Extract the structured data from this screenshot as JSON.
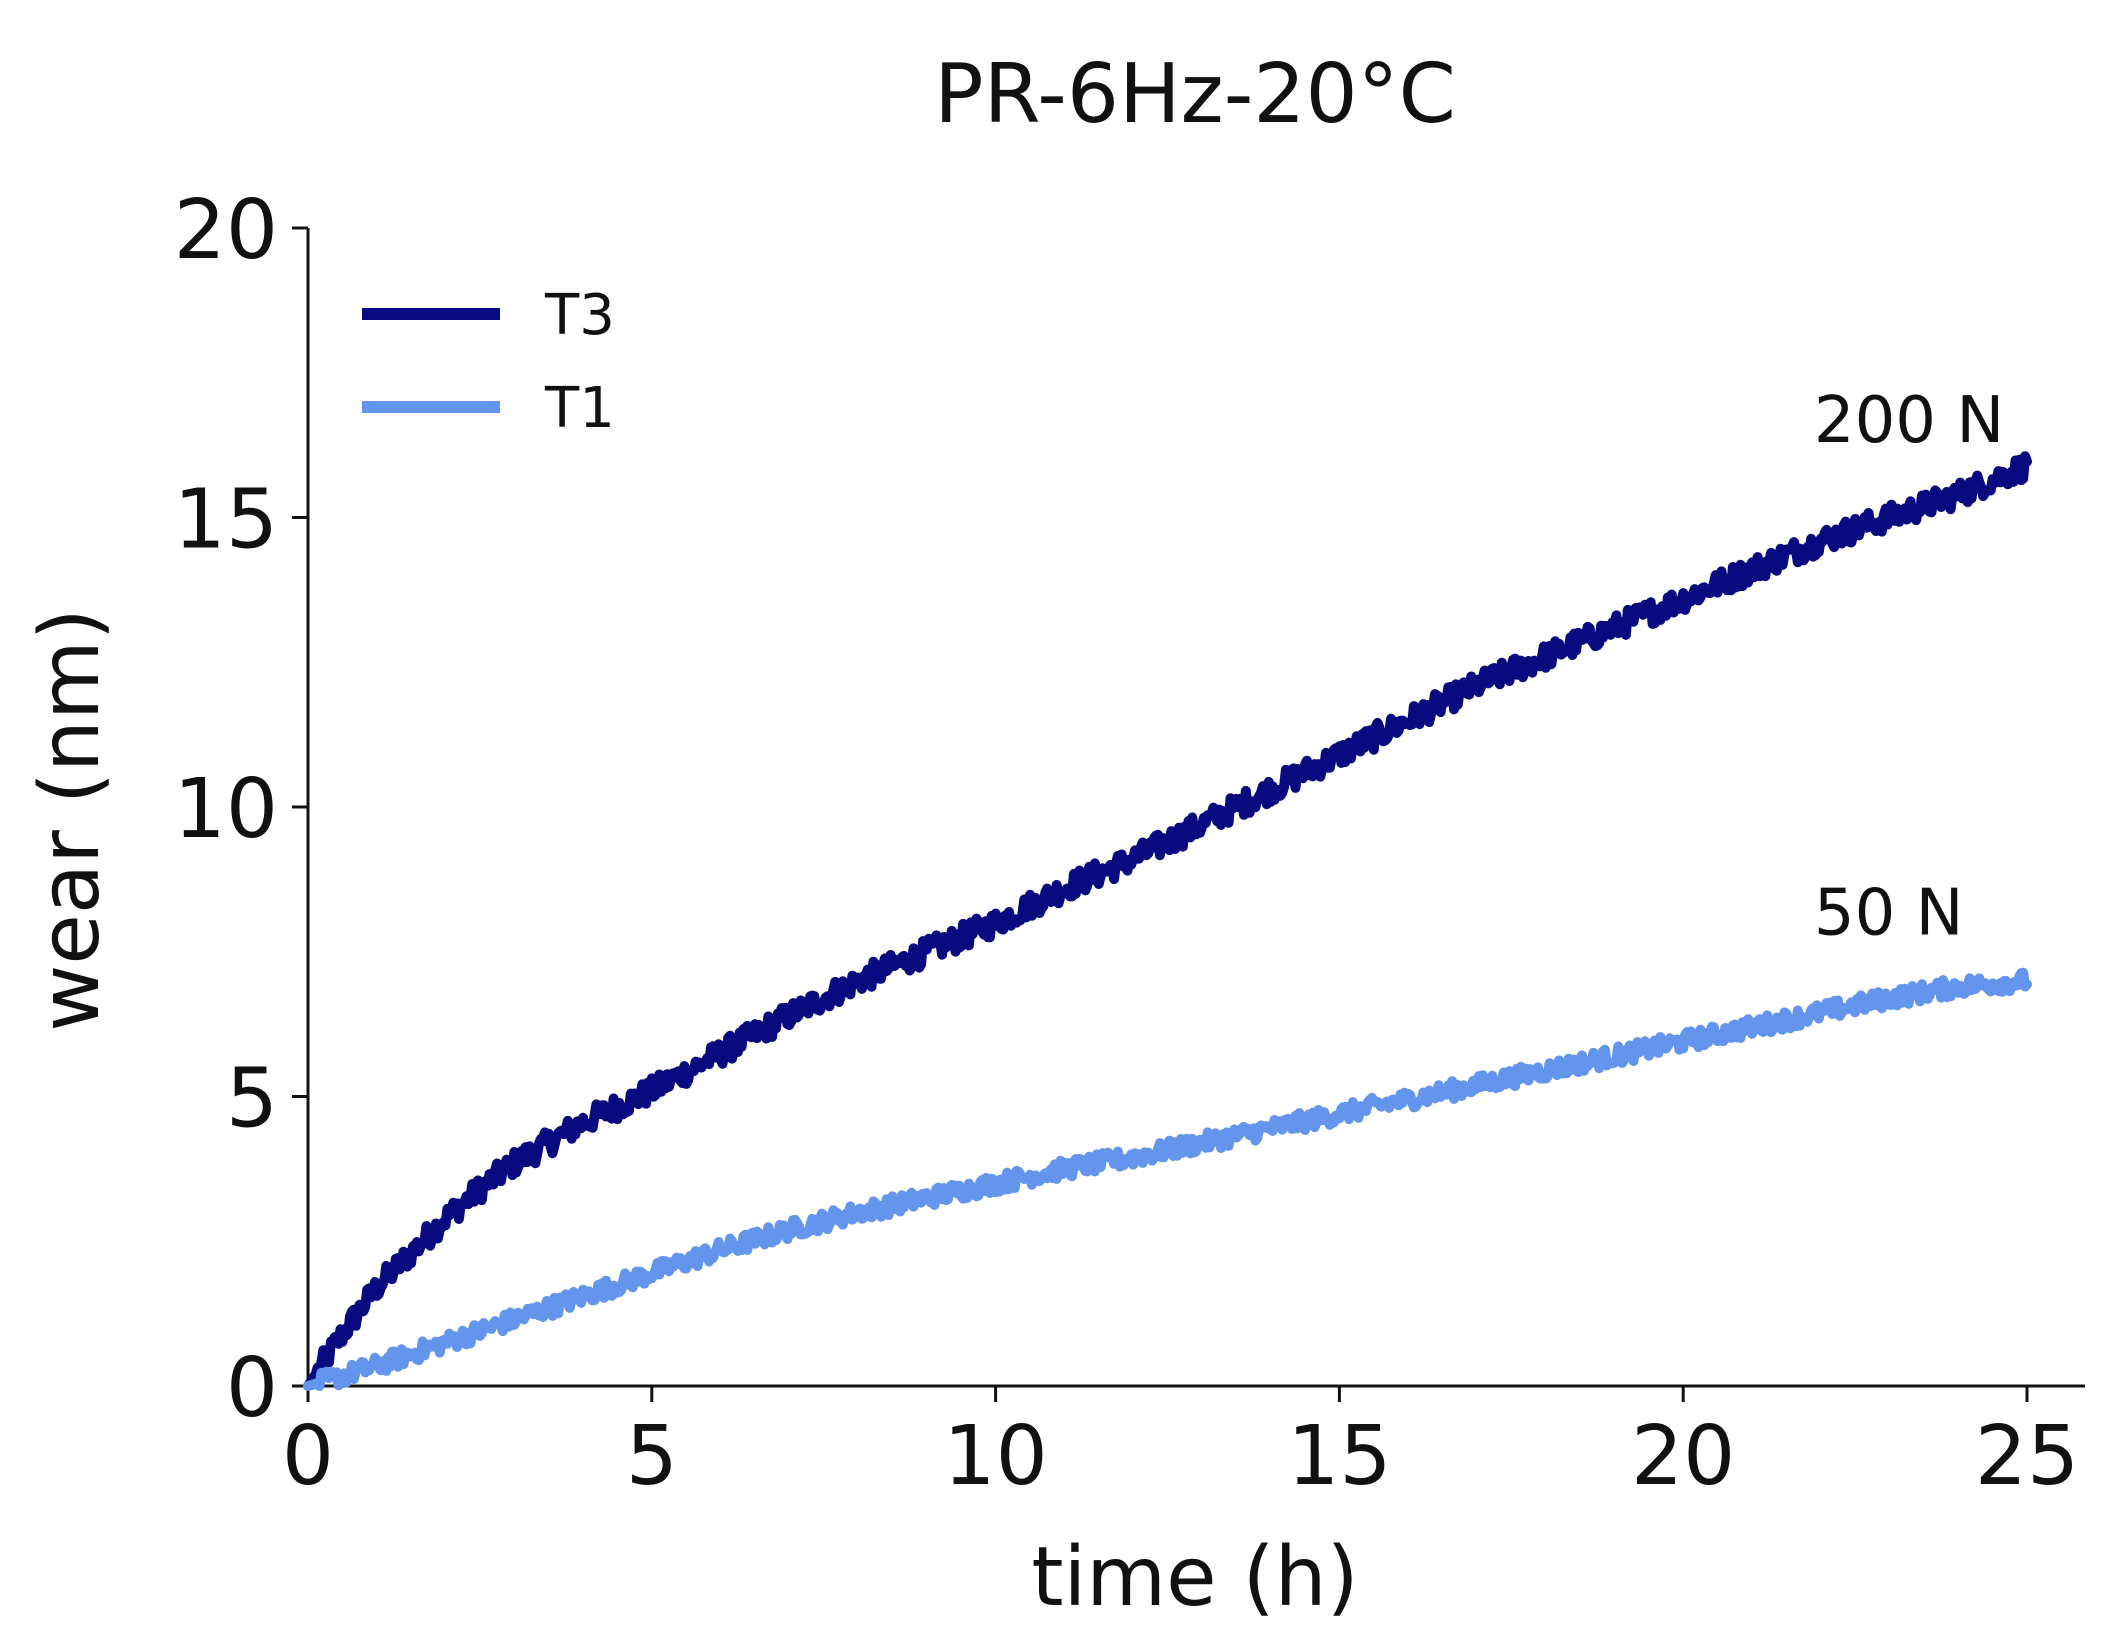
{
  "chart_data": {
    "type": "line",
    "title": "PR-6Hz-20°C",
    "xlabel": "time (h)",
    "ylabel": "wear (nm)",
    "xlim": [
      0,
      26
    ],
    "ylim": [
      0,
      20
    ],
    "xticks": [
      0,
      5,
      10,
      15,
      20,
      25
    ],
    "yticks": [
      0,
      5,
      10,
      15,
      20
    ],
    "xtick_labels": [
      "0",
      "5",
      "10",
      "15",
      "20",
      "25"
    ],
    "ytick_labels": [
      "0",
      "5",
      "10",
      "15",
      "20"
    ],
    "grid": false,
    "legend_position": "top-left",
    "series": [
      {
        "name": "T3",
        "color": "#0a0a80",
        "x": [
          0,
          0.5,
          1,
          1.5,
          2,
          2.5,
          3,
          3.5,
          4,
          5,
          6,
          7,
          8,
          9,
          10,
          11,
          12,
          13,
          14,
          15,
          16,
          17,
          18,
          19,
          20,
          21,
          22,
          23,
          24,
          25
        ],
        "y": [
          0,
          0.9,
          1.7,
          2.3,
          2.9,
          3.4,
          3.85,
          4.2,
          4.55,
          5.1,
          5.75,
          6.4,
          7.0,
          7.5,
          8.0,
          8.6,
          9.1,
          9.7,
          10.3,
          10.9,
          11.5,
          12.1,
          12.6,
          13.1,
          13.6,
          14.1,
          14.6,
          15.0,
          15.4,
          15.9
        ]
      },
      {
        "name": "T1",
        "color": "#6495ed",
        "x": [
          0,
          1,
          2,
          3,
          4,
          5,
          6,
          7,
          8,
          9,
          10,
          11,
          12,
          13,
          14,
          15,
          16,
          17,
          18,
          19,
          20,
          21,
          22,
          23,
          24,
          25
        ],
        "y": [
          0,
          0.35,
          0.75,
          1.15,
          1.55,
          1.95,
          2.35,
          2.7,
          3.0,
          3.25,
          3.5,
          3.75,
          3.95,
          4.2,
          4.45,
          4.7,
          4.95,
          5.2,
          5.45,
          5.7,
          5.95,
          6.2,
          6.45,
          6.7,
          6.9,
          7.0
        ]
      }
    ],
    "annotations": [
      {
        "text": "200 N",
        "x": 21.9,
        "y": 16.3
      },
      {
        "text": "50 N",
        "x": 21.9,
        "y": 7.8
      }
    ]
  }
}
